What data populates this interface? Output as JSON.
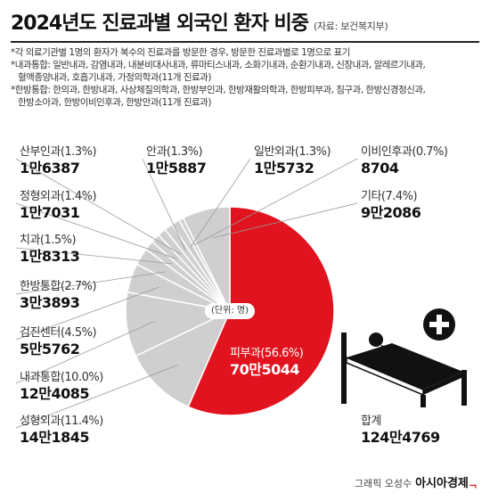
{
  "header": {
    "title": "2024년도 진료과별 외국인 환자 비중",
    "source": "(자료: 보건복지부)"
  },
  "notes": [
    "*각 의료기관별 1명의 환자가 복수의 진료과를 방문한 경우, 방문한 진료과별로 1명으로 표기",
    "*내과통합: 일반내과, 감염내과, 내분비대사내과, 류마티스내과, 소화기내과, 순환기내과, 신장내과, 알레르기내과,",
    "혈액종양내과, 호흡기내과, 가정의학과(11개 진료과)",
    "*한방통합: 한의과, 한방내과, 사상체질의학과, 한방부인과, 한방재활의학과, 한방피부과, 침구과, 한방신경정신과,",
    "한방소아과, 한방이비인후과, 한방안과(11개 진료과)"
  ],
  "chart_data": {
    "type": "pie",
    "title": "2024년도 진료과별 외국인 환자 비중",
    "unit_label": "(단위: 명)",
    "slices": [
      {
        "name": "피부과",
        "pct_label": "(56.6%)",
        "percent": 56.6,
        "value_label": "70만5044",
        "value": 705044,
        "color": "#e1131e"
      },
      {
        "name": "성형외과",
        "pct_label": "(11.4%)",
        "percent": 11.4,
        "value_label": "14만1845",
        "value": 141845,
        "color": "#cfcfcf"
      },
      {
        "name": "내과통합",
        "pct_label": "(10.0%)",
        "percent": 10.0,
        "value_label": "12만4085",
        "value": 124085,
        "color": "#cfcfcf"
      },
      {
        "name": "검진센터",
        "pct_label": "(4.5%)",
        "percent": 4.5,
        "value_label": "5만5762",
        "value": 55762,
        "color": "#cfcfcf"
      },
      {
        "name": "한방통합",
        "pct_label": "(2.7%)",
        "percent": 2.7,
        "value_label": "3만3893",
        "value": 33893,
        "color": "#cfcfcf"
      },
      {
        "name": "치과",
        "pct_label": "(1.5%)",
        "percent": 1.5,
        "value_label": "1만8313",
        "value": 18313,
        "color": "#cfcfcf"
      },
      {
        "name": "정형외과",
        "pct_label": "(1.4%)",
        "percent": 1.4,
        "value_label": "1만7031",
        "value": 17031,
        "color": "#cfcfcf"
      },
      {
        "name": "산부인과",
        "pct_label": "(1.3%)",
        "percent": 1.3,
        "value_label": "1만6387",
        "value": 16387,
        "color": "#cfcfcf"
      },
      {
        "name": "안과",
        "pct_label": "(1.3%)",
        "percent": 1.3,
        "value_label": "1만5887",
        "value": 15887,
        "color": "#cfcfcf"
      },
      {
        "name": "일반외과",
        "pct_label": "(1.3%)",
        "percent": 1.3,
        "value_label": "1만5732",
        "value": 15732,
        "color": "#cfcfcf"
      },
      {
        "name": "이비인후과",
        "pct_label": "(0.7%)",
        "percent": 0.7,
        "value_label": "8704",
        "value": 8704,
        "color": "#cfcfcf"
      },
      {
        "name": "기타",
        "pct_label": "(7.4%)",
        "percent": 7.4,
        "value_label": "9만2086",
        "value": 92086,
        "color": "#cfcfcf"
      }
    ],
    "total": {
      "name": "합계",
      "value_label": "124만4769",
      "value": 1244769
    }
  },
  "credit": {
    "text": "그래픽 오성수",
    "brand": "아시아경제"
  }
}
